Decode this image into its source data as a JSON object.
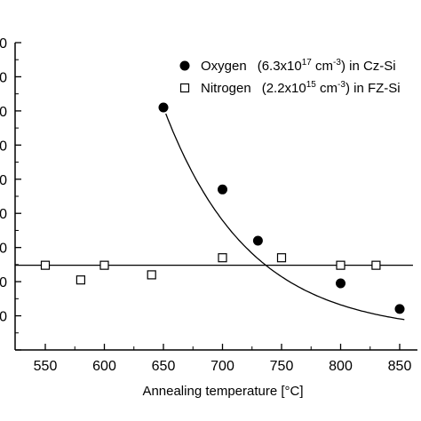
{
  "chart_data": {
    "type": "scatter",
    "xlabel": "Annealing temperature [°C]",
    "ylabel": "",
    "xlim": [
      522,
      865
    ],
    "ylim": [
      0,
      9
    ],
    "x_ticks": [
      550,
      600,
      650,
      700,
      750,
      800,
      850
    ],
    "y_ticks_partial": [
      "0",
      "0",
      "0",
      "0",
      "0",
      "0",
      "0",
      "0",
      "0"
    ],
    "grid": false,
    "legend_position": "top-right",
    "series": [
      {
        "name": "Oxygen",
        "legend": {
          "name": "Oxygen",
          "conc_base": "(6.3x10",
          "conc_exp": "17",
          "unit": " cm",
          "unit_exp": "-3",
          "suffix": ") in Cz-Si"
        },
        "marker": "filled-circle",
        "color": "#000000",
        "x": [
          650,
          700,
          730,
          800,
          850
        ],
        "y": [
          7.1,
          4.7,
          3.2,
          1.95,
          1.2
        ],
        "fit": "exponential-decay-curve"
      },
      {
        "name": "Nitrogen",
        "legend": {
          "name": "Nitrogen",
          "conc_base": "(2.2x10",
          "conc_exp": "15",
          "unit": " cm",
          "unit_exp": "-3",
          "suffix": ") in FZ-Si"
        },
        "marker": "open-square",
        "color": "#000000",
        "x": [
          550,
          580,
          600,
          640,
          700,
          750,
          800,
          830
        ],
        "y": [
          2.48,
          2.05,
          2.48,
          2.2,
          2.7,
          2.7,
          2.48,
          2.48
        ],
        "fit": "horizontal-line",
        "fit_value": 2.48
      }
    ]
  }
}
